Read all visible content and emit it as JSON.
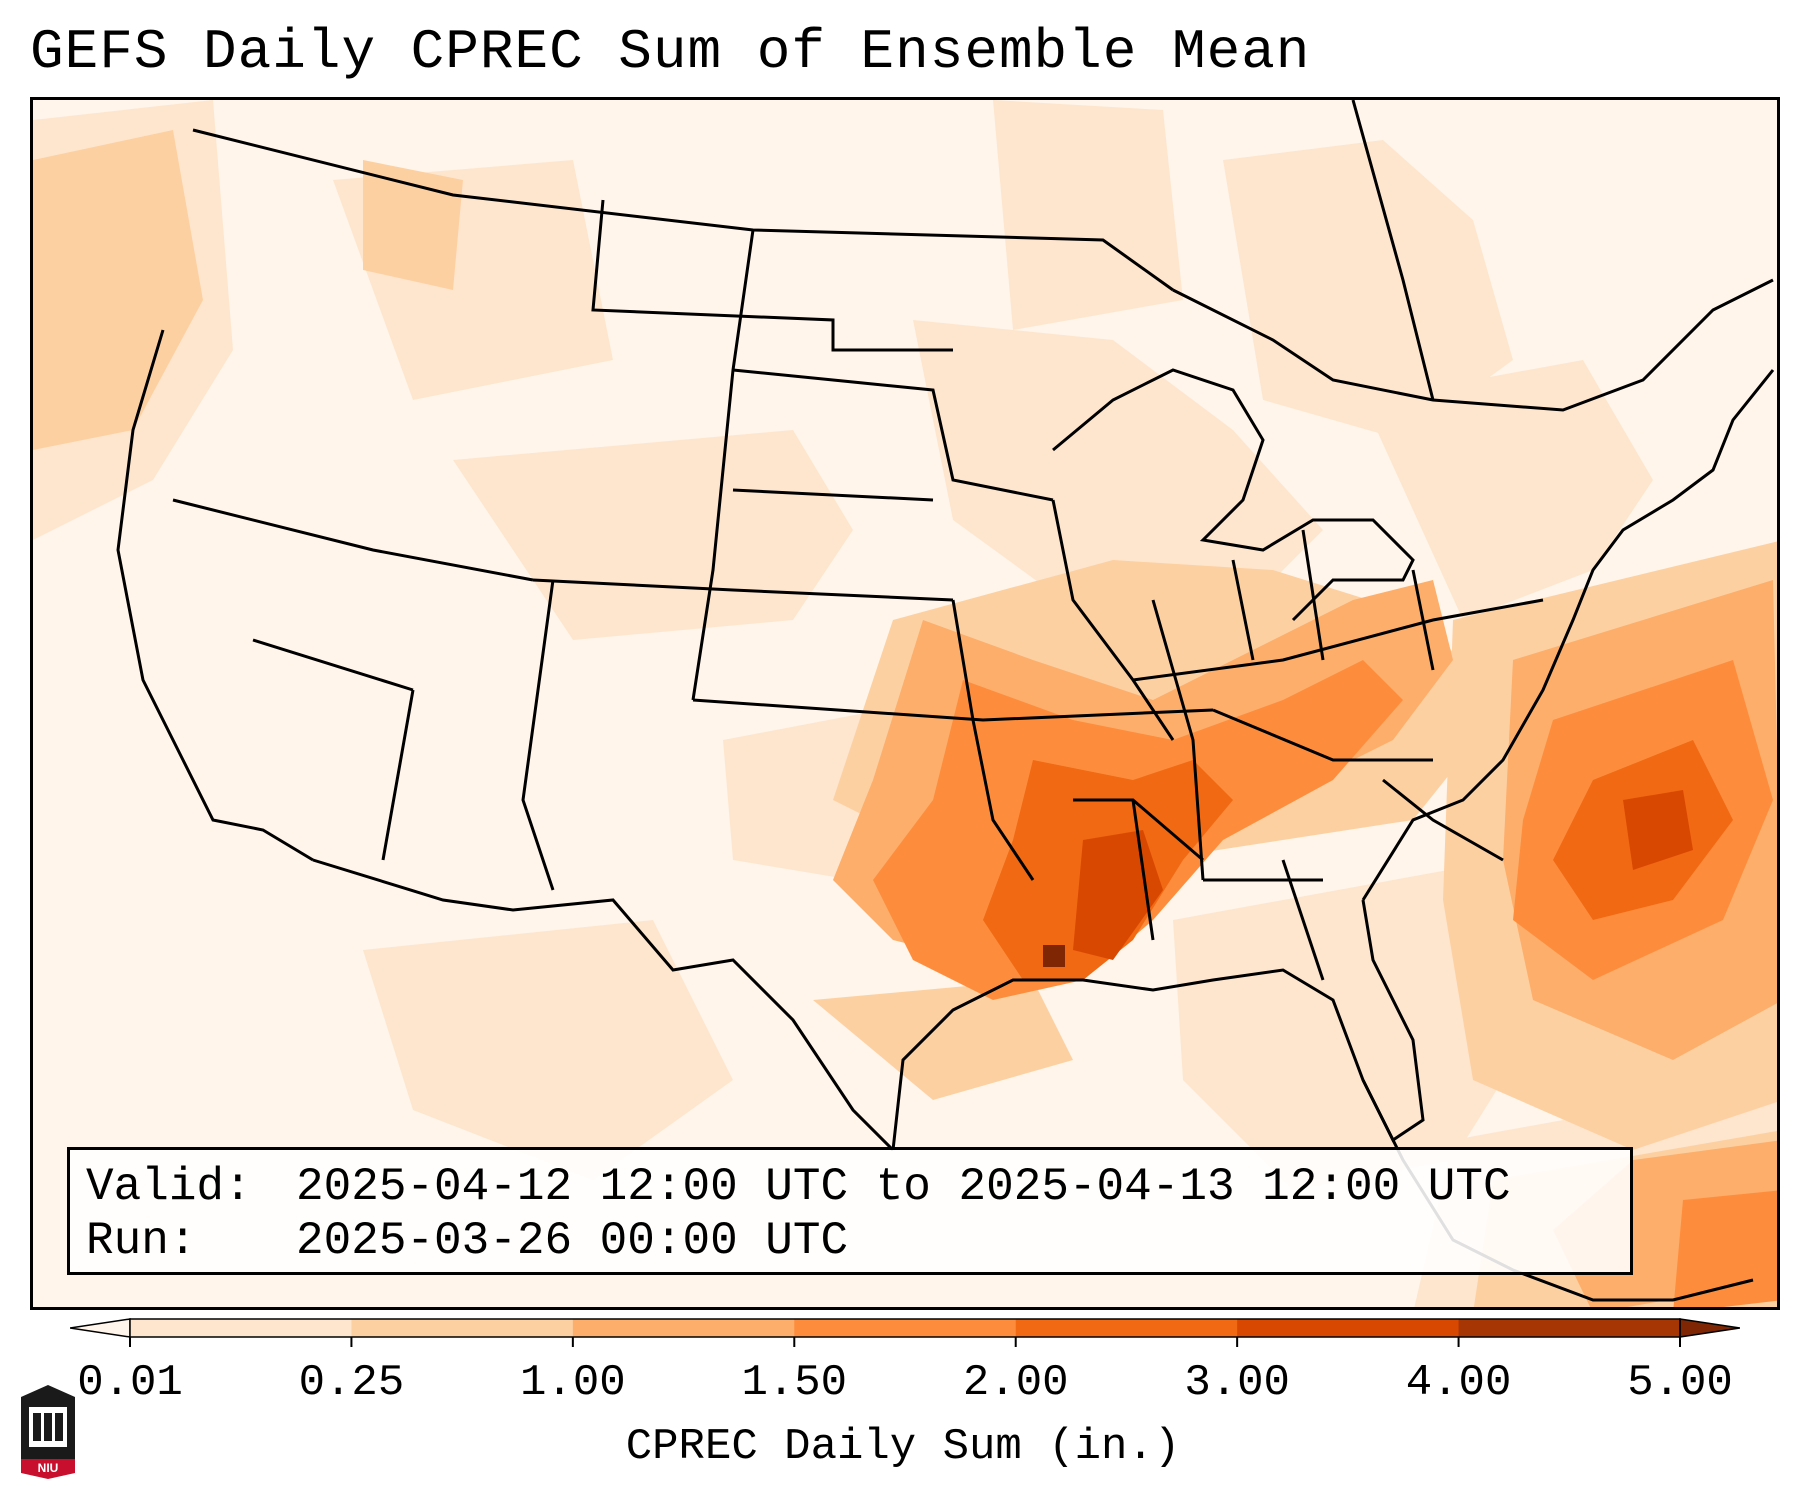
{
  "title": "GEFS Daily CPREC Sum of Ensemble Mean",
  "info": {
    "valid_label": "Valid:",
    "valid_value": "2025-04-12 12:00 UTC to 2025-04-13 12:00 UTC",
    "run_label": "Run:",
    "run_value": "2025-03-26 00:00 UTC"
  },
  "colorbar": {
    "label": "CPREC Daily Sum (in.)",
    "ticks": [
      "0.01",
      "0.25",
      "1.00",
      "1.50",
      "2.00",
      "3.00",
      "4.00",
      "5.00"
    ],
    "colors": [
      "#fff5eb",
      "#fee6ce",
      "#fdd0a2",
      "#fdae6b",
      "#fd8d3c",
      "#f16913",
      "#d94801",
      "#a63603",
      "#7f2704"
    ],
    "extend": "both"
  },
  "logo": {
    "text": "NIU",
    "icon": "niu-building-logo"
  },
  "map": {
    "projection": "lambert-conformal-conus",
    "background": "#fff6ee",
    "outline_color": "#000000"
  }
}
